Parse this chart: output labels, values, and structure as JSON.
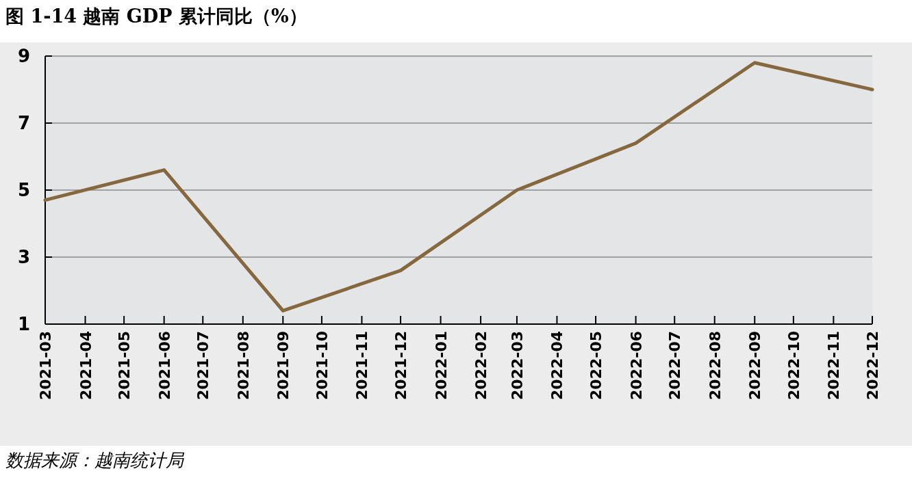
{
  "chart_data": {
    "type": "line",
    "title": "图 1-14  越南 GDP 累计同比（%）",
    "annotations": [
      "数据来源：越南统计局"
    ],
    "x": [
      "2021-03",
      "2021-06",
      "2021-09",
      "2021-12",
      "2022-03",
      "2022-06",
      "2022-09",
      "2022-12"
    ],
    "series": [
      {
        "color": "#86683f",
        "values": [
          4.7,
          5.6,
          1.4,
          2.6,
          5.0,
          6.4,
          8.8,
          8.0
        ]
      }
    ],
    "xlim": [
      "2021-03",
      "2022-12"
    ],
    "xticks": [
      "2021-03",
      "2021-04",
      "2021-05",
      "2021-06",
      "2021-07",
      "2021-08",
      "2021-09",
      "2021-10",
      "2021-11",
      "2021-12",
      "2022-01",
      "2022-02",
      "2022-03",
      "2022-04",
      "2022-05",
      "2022-06",
      "2022-07",
      "2022-08",
      "2022-09",
      "2022-10",
      "2022-11",
      "2022-12"
    ],
    "ylim": [
      1,
      9
    ],
    "yticks": [
      1,
      3,
      5,
      7,
      9
    ],
    "grid": "y",
    "marker": "none",
    "line_style": "solid"
  }
}
